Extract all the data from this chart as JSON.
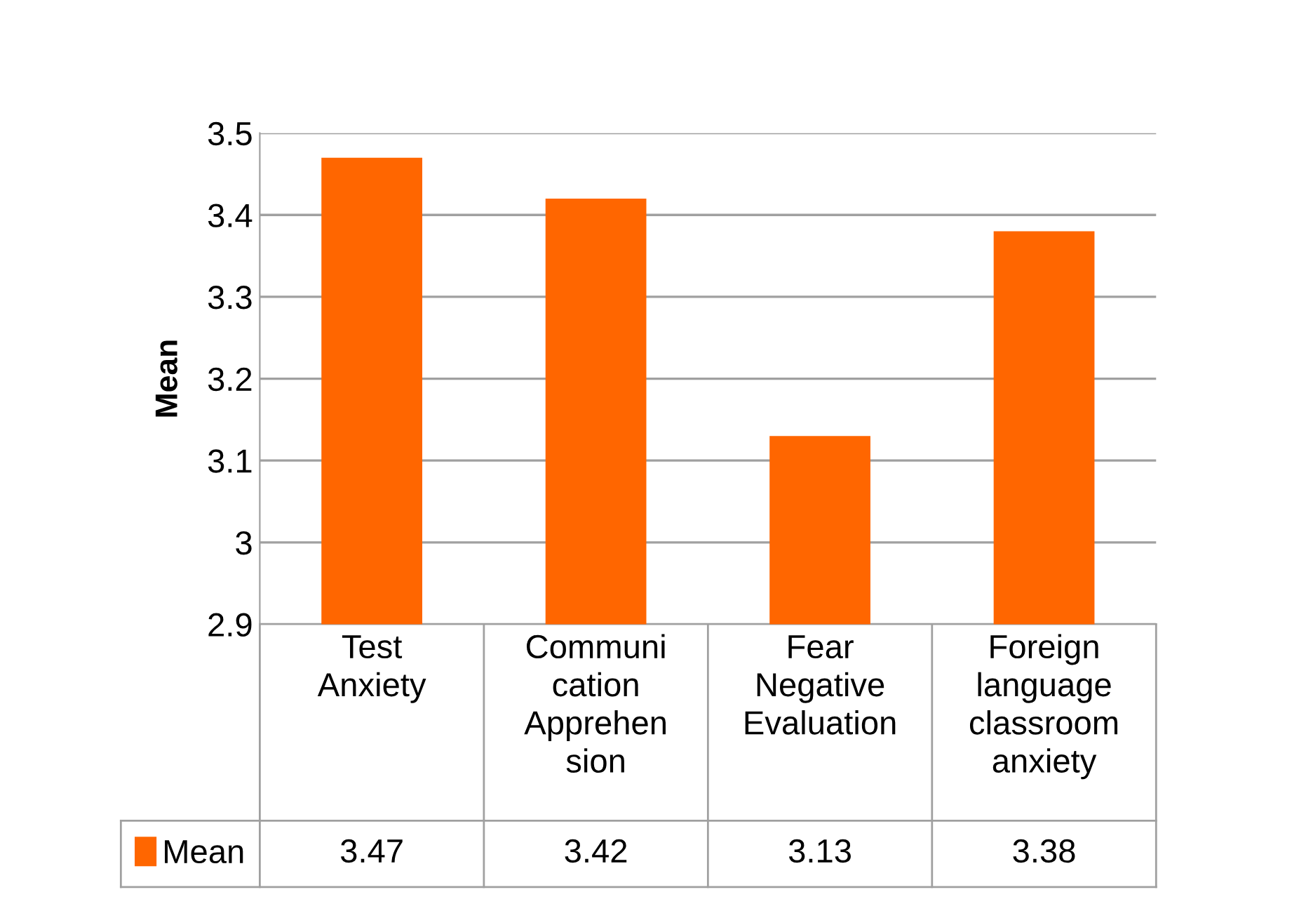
{
  "chart_data": {
    "type": "bar",
    "ylabel": "Mean",
    "categories": [
      "Test\nAnxiety",
      "Communi\ncation\nApprehen\nsion",
      "Fear\nNegative\nEvaluation",
      "Foreign\nlanguage\nclassroom\nanxiety"
    ],
    "series": [
      {
        "name": "Mean",
        "color": "#ff6600",
        "values": [
          3.47,
          3.42,
          3.13,
          3.38
        ]
      }
    ],
    "ylim": [
      2.9,
      3.5
    ],
    "yticks": [
      2.9,
      3,
      3.1,
      3.2,
      3.3,
      3.4,
      3.5
    ],
    "grid": "y",
    "legend": "bottom left",
    "data_labels": true
  }
}
